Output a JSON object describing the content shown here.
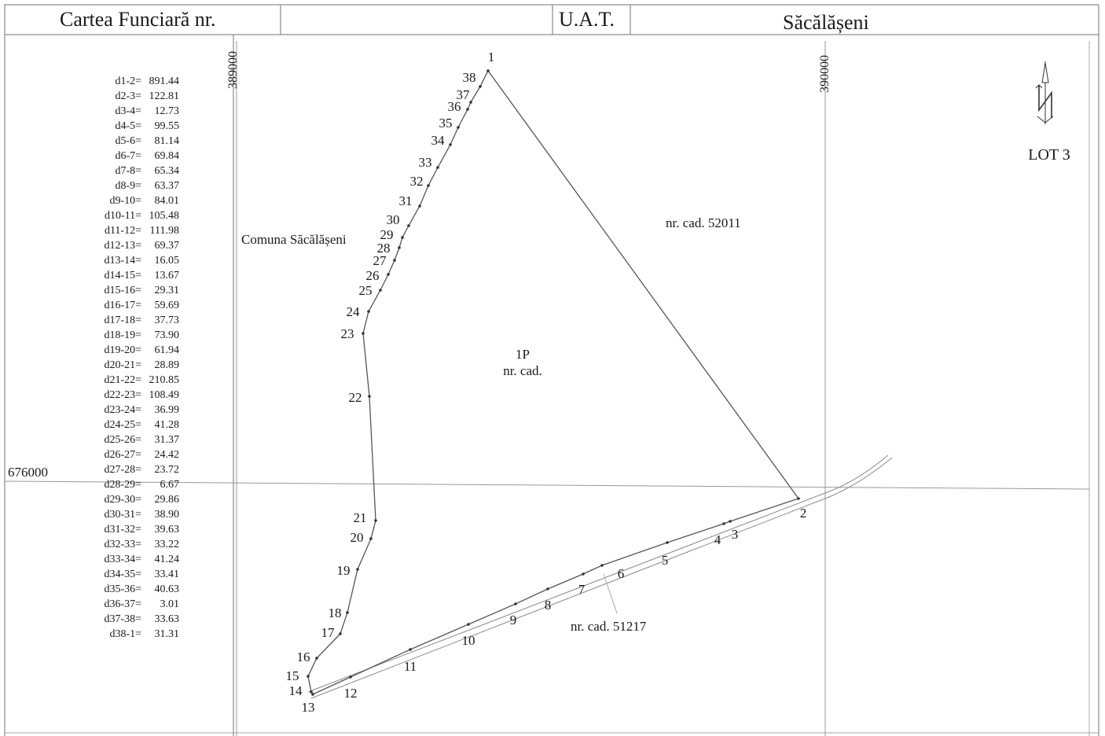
{
  "header": {
    "title": "Cartea Funciară nr.",
    "uat_label": "U.A.T.",
    "uat_value": "Săcălășeni"
  },
  "grid_labels": {
    "x_left": "389000",
    "x_right": "390000",
    "y_mid": "676000"
  },
  "north_label": "LOT 3",
  "parcel": {
    "name": "1P",
    "cad": "nr. cad."
  },
  "neighbors": {
    "north_east": "nr. cad. 52011",
    "south_road": "nr. cad. 51217",
    "west": "Comuna Săcălășeni"
  },
  "distances": [
    {
      "label": "d1-2=",
      "value": "891.44"
    },
    {
      "label": "d2-3=",
      "value": "122.81"
    },
    {
      "label": "d3-4=",
      "value": "12.73"
    },
    {
      "label": "d4-5=",
      "value": "99.55"
    },
    {
      "label": "d5-6=",
      "value": "81.14"
    },
    {
      "label": "d6-7=",
      "value": "69.84"
    },
    {
      "label": "d7-8=",
      "value": "65.34"
    },
    {
      "label": "d8-9=",
      "value": "63.37"
    },
    {
      "label": "d9-10=",
      "value": "84.01"
    },
    {
      "label": "d10-11=",
      "value": "105.48"
    },
    {
      "label": "d11-12=",
      "value": "111.98"
    },
    {
      "label": "d12-13=",
      "value": "69.37"
    },
    {
      "label": "d13-14=",
      "value": "16.05"
    },
    {
      "label": "d14-15=",
      "value": "13.67"
    },
    {
      "label": "d15-16=",
      "value": "29.31"
    },
    {
      "label": "d16-17=",
      "value": "59.69"
    },
    {
      "label": "d17-18=",
      "value": "37.73"
    },
    {
      "label": "d18-19=",
      "value": "73.90"
    },
    {
      "label": "d19-20=",
      "value": "61.94"
    },
    {
      "label": "d20-21=",
      "value": "28.89"
    },
    {
      "label": "d21-22=",
      "value": "210.85"
    },
    {
      "label": "d22-23=",
      "value": "108.49"
    },
    {
      "label": "d23-24=",
      "value": "36.99"
    },
    {
      "label": "d24-25=",
      "value": "41.28"
    },
    {
      "label": "d25-26=",
      "value": "31.37"
    },
    {
      "label": "d26-27=",
      "value": "24.42"
    },
    {
      "label": "d27-28=",
      "value": "23.72"
    },
    {
      "label": "d28-29=",
      "value": "6.67"
    },
    {
      "label": "d29-30=",
      "value": "29.86"
    },
    {
      "label": "d30-31=",
      "value": "38.90"
    },
    {
      "label": "d31-32=",
      "value": "39.63"
    },
    {
      "label": "d32-33=",
      "value": "33.22"
    },
    {
      "label": "d33-34=",
      "value": "41.24"
    },
    {
      "label": "d34-35=",
      "value": "33.41"
    },
    {
      "label": "d35-36=",
      "value": "40.63"
    },
    {
      "label": "d36-37=",
      "value": "3.01"
    },
    {
      "label": "d37-38=",
      "value": "33.63"
    },
    {
      "label": "d38-1=",
      "value": "31.31"
    }
  ],
  "vertices": [
    "1",
    "2",
    "3",
    "4",
    "5",
    "6",
    "7",
    "8",
    "9",
    "10",
    "11",
    "12",
    "13",
    "14",
    "15",
    "16",
    "17",
    "18",
    "19",
    "20",
    "21",
    "22",
    "23",
    "24",
    "25",
    "26",
    "27",
    "28",
    "29",
    "30",
    "31",
    "32",
    "33",
    "34",
    "35",
    "36",
    "37",
    "38"
  ],
  "colors": {
    "line": "#555555",
    "grid": "#999999",
    "text": "#1a1a1a"
  }
}
